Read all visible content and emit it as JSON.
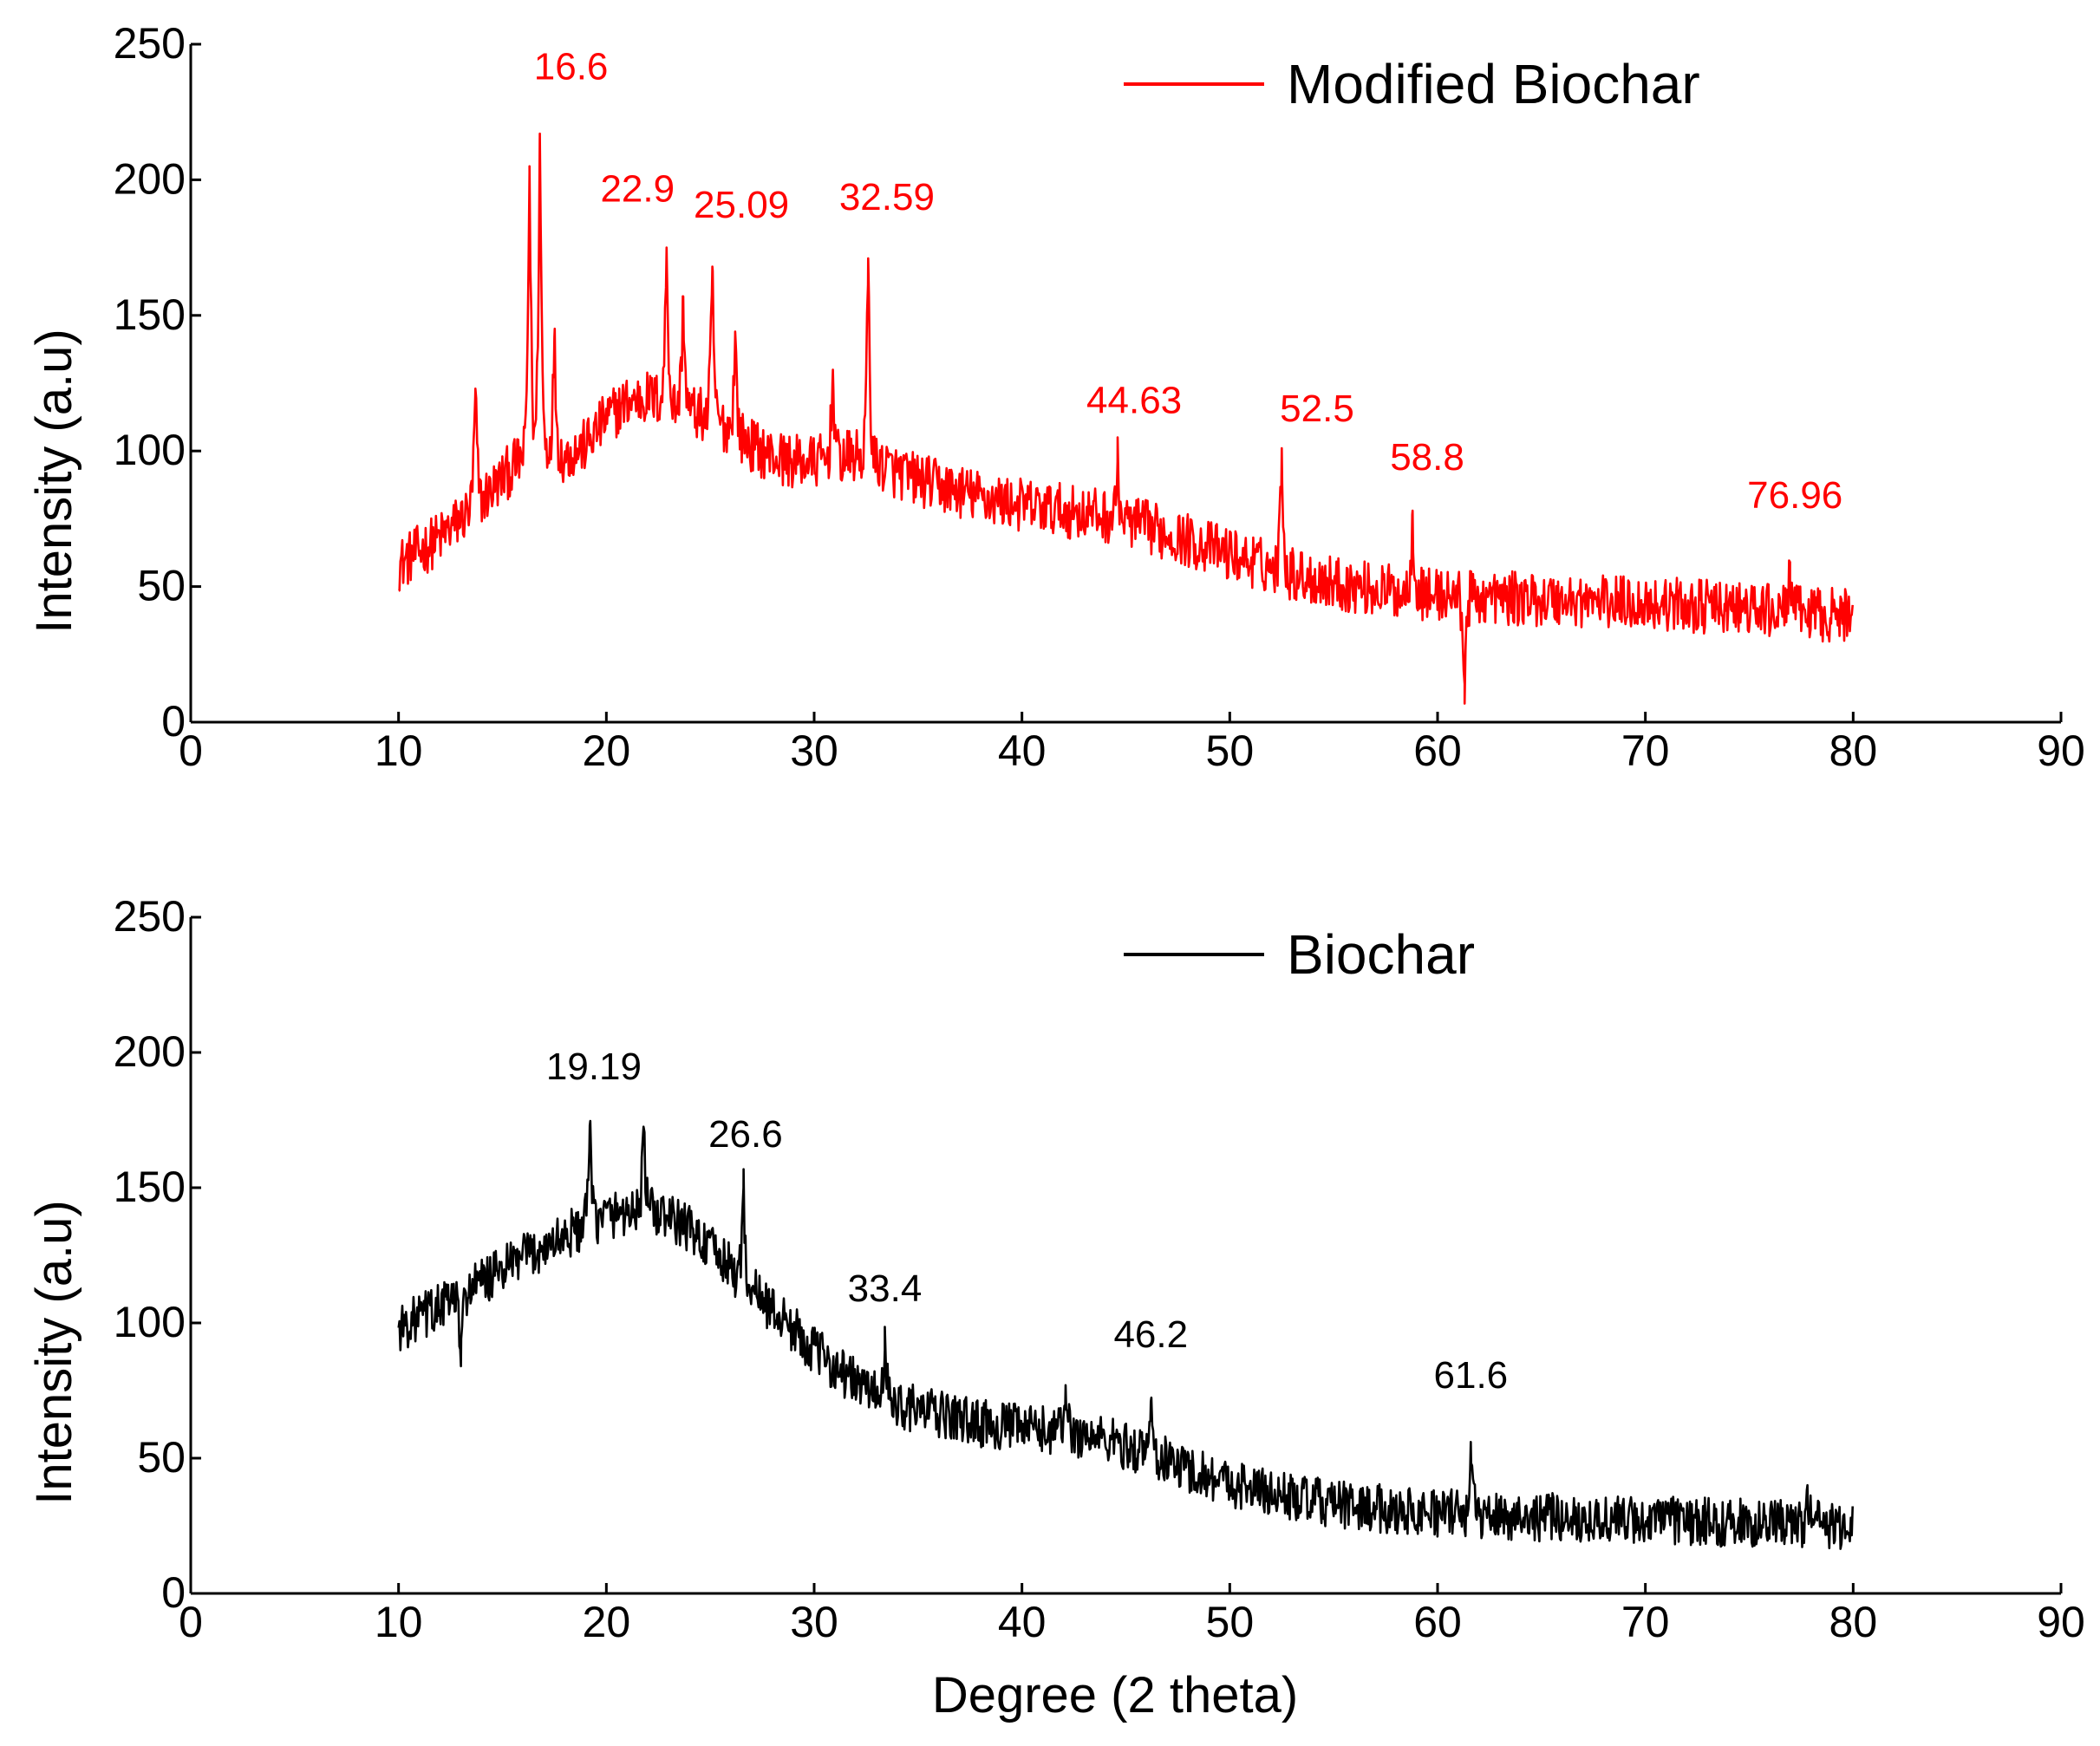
{
  "chart_data": [
    {
      "type": "line",
      "id": "top",
      "legend": "Modified Biochar",
      "color": "#ff0000",
      "xlabel": "",
      "ylabel": "Intensity (a.u)",
      "xlim": [
        0,
        90
      ],
      "ylim": [
        0,
        250
      ],
      "x_ticks": [
        "0",
        "10",
        "20",
        "30",
        "40",
        "50",
        "60",
        "70",
        "80",
        "90"
      ],
      "y_ticks": [
        "0",
        "50",
        "100",
        "150",
        "200",
        "250"
      ],
      "x_range": [
        10,
        80
      ],
      "profile": [
        [
          10,
          58
        ],
        [
          12,
          68
        ],
        [
          13,
          75
        ],
        [
          14,
          82
        ],
        [
          15,
          90
        ],
        [
          16,
          98
        ],
        [
          17,
          102
        ],
        [
          18,
          98
        ],
        [
          19,
          102
        ],
        [
          20,
          112
        ],
        [
          21,
          118
        ],
        [
          22,
          120
        ],
        [
          23,
          118
        ],
        [
          24,
          115
        ],
        [
          25,
          112
        ],
        [
          26,
          108
        ],
        [
          27,
          102
        ],
        [
          28,
          98
        ],
        [
          29,
          96
        ],
        [
          30,
          96
        ],
        [
          31,
          97
        ],
        [
          32,
          98
        ],
        [
          33,
          96
        ],
        [
          34,
          92
        ],
        [
          36,
          87
        ],
        [
          38,
          83
        ],
        [
          40,
          80
        ],
        [
          42,
          78
        ],
        [
          44,
          76
        ],
        [
          46,
          72
        ],
        [
          48,
          67
        ],
        [
          50,
          62
        ],
        [
          52,
          57
        ],
        [
          54,
          53
        ],
        [
          56,
          50
        ],
        [
          58,
          48
        ],
        [
          60,
          47
        ],
        [
          62,
          46
        ],
        [
          66,
          45
        ],
        [
          70,
          44
        ],
        [
          74,
          42
        ],
        [
          78,
          40
        ],
        [
          80,
          39
        ]
      ],
      "noise": 10,
      "peaks": [
        {
          "x": 13.7,
          "y": 123
        },
        {
          "x": 16.3,
          "y": 205
        },
        {
          "x": 16.8,
          "y": 217
        },
        {
          "x": 17.5,
          "y": 142
        },
        {
          "x": 22.9,
          "y": 175
        },
        {
          "x": 23.7,
          "y": 157
        },
        {
          "x": 25.1,
          "y": 168
        },
        {
          "x": 26.2,
          "y": 143
        },
        {
          "x": 30.9,
          "y": 130
        },
        {
          "x": 32.6,
          "y": 171
        },
        {
          "x": 44.6,
          "y": 96
        },
        {
          "x": 52.5,
          "y": 101
        },
        {
          "x": 58.8,
          "y": 78
        },
        {
          "x": 61.3,
          "y": 14
        },
        {
          "x": 76.96,
          "y": 59
        }
      ],
      "annotations": [
        {
          "text": "16.6",
          "x": 18.3,
          "y": 237
        },
        {
          "text": "22.9",
          "x": 21.5,
          "y": 192
        },
        {
          "text": "25.09",
          "x": 26.5,
          "y": 186
        },
        {
          "text": "32.59",
          "x": 33.5,
          "y": 189
        },
        {
          "text": "44.63",
          "x": 45.4,
          "y": 114
        },
        {
          "text": "52.5",
          "x": 54.2,
          "y": 111
        },
        {
          "text": "58.8",
          "x": 59.5,
          "y": 93
        },
        {
          "text": "76.96",
          "x": 77.2,
          "y": 79
        }
      ]
    },
    {
      "type": "line",
      "id": "bottom",
      "legend": "Biochar",
      "color": "#000000",
      "xlabel": "Degree (2 theta)",
      "ylabel": "Intensity (a.u)",
      "xlim": [
        0,
        90
      ],
      "ylim": [
        0,
        250
      ],
      "x_ticks": [
        "0",
        "10",
        "20",
        "30",
        "40",
        "50",
        "60",
        "70",
        "80",
        "90"
      ],
      "y_ticks": [
        "0",
        "50",
        "100",
        "150",
        "200",
        "250"
      ],
      "x_range": [
        10,
        80
      ],
      "profile": [
        [
          10,
          98
        ],
        [
          12,
          106
        ],
        [
          14,
          115
        ],
        [
          16,
          124
        ],
        [
          18,
          132
        ],
        [
          20,
          140
        ],
        [
          22,
          142
        ],
        [
          24,
          135
        ],
        [
          26,
          120
        ],
        [
          28,
          105
        ],
        [
          30,
          90
        ],
        [
          32,
          78
        ],
        [
          34,
          70
        ],
        [
          36,
          66
        ],
        [
          38,
          63
        ],
        [
          40,
          61
        ],
        [
          42,
          60
        ],
        [
          44,
          57
        ],
        [
          46,
          52
        ],
        [
          48,
          46
        ],
        [
          50,
          41
        ],
        [
          52,
          37
        ],
        [
          54,
          34
        ],
        [
          56,
          32
        ],
        [
          58,
          31
        ],
        [
          60,
          30
        ],
        [
          62,
          29
        ],
        [
          66,
          28
        ],
        [
          70,
          27
        ],
        [
          75,
          26
        ],
        [
          80,
          25
        ]
      ],
      "noise": 9,
      "peaks": [
        {
          "x": 13.0,
          "y": 84
        },
        {
          "x": 19.2,
          "y": 173
        },
        {
          "x": 21.8,
          "y": 172
        },
        {
          "x": 26.6,
          "y": 150
        },
        {
          "x": 33.4,
          "y": 90
        },
        {
          "x": 42.1,
          "y": 77
        },
        {
          "x": 46.2,
          "y": 71
        },
        {
          "x": 61.6,
          "y": 56
        },
        {
          "x": 77.8,
          "y": 40
        }
      ],
      "annotations": [
        {
          "text": "19.19",
          "x": 19.4,
          "y": 190
        },
        {
          "text": "26.6",
          "x": 26.7,
          "y": 165
        },
        {
          "text": "33.4",
          "x": 33.4,
          "y": 108
        },
        {
          "text": "46.2",
          "x": 46.2,
          "y": 91
        },
        {
          "text": "61.6",
          "x": 61.6,
          "y": 76
        }
      ]
    }
  ]
}
